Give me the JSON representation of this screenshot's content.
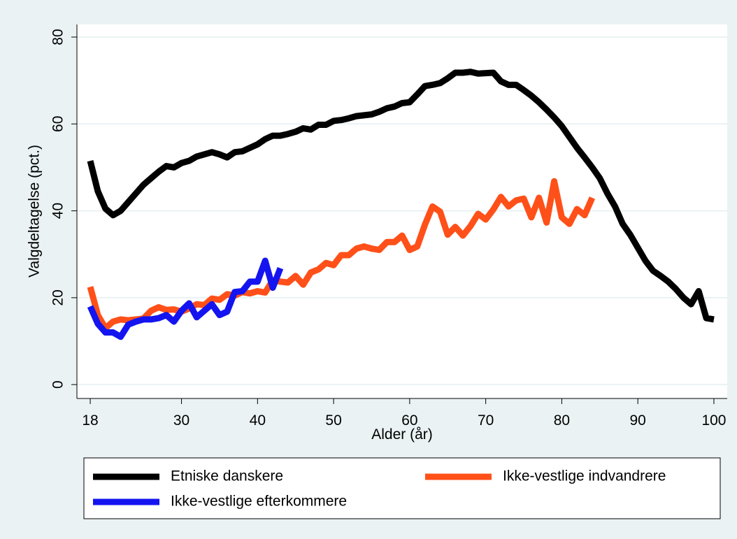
{
  "chart_data": {
    "type": "line",
    "x_label": "Alder (år)",
    "y_label": "Valgdeltagelse (pct.)",
    "xlim": [
      16.25,
      101.75
    ],
    "ylim": [
      -3.2,
      82.9
    ],
    "xticks": [
      18,
      30,
      40,
      50,
      60,
      70,
      80,
      90,
      100
    ],
    "yticks": [
      0,
      20,
      40,
      60,
      80
    ],
    "grid": true,
    "series": [
      {
        "name": "Etniske danskere",
        "color": "#000000",
        "x": [
          18,
          19,
          20,
          21,
          22,
          23,
          24,
          25,
          26,
          27,
          28,
          29,
          30,
          31,
          32,
          33,
          34,
          35,
          36,
          37,
          38,
          39,
          40,
          41,
          42,
          43,
          44,
          45,
          46,
          47,
          48,
          49,
          50,
          51,
          52,
          53,
          54,
          55,
          56,
          57,
          58,
          59,
          60,
          61,
          62,
          63,
          64,
          65,
          66,
          67,
          68,
          69,
          70,
          71,
          72,
          73,
          74,
          75,
          76,
          77,
          78,
          79,
          80,
          81,
          82,
          83,
          84,
          85,
          86,
          87,
          88,
          89,
          90,
          91,
          92,
          93,
          94,
          95,
          96,
          97,
          98,
          99,
          100
        ],
        "values": [
          51.5,
          44.5,
          40.5,
          39,
          40,
          42,
          44,
          46,
          47.5,
          49,
          50.3,
          50,
          51,
          51.5,
          52.5,
          53,
          53.5,
          53,
          52.3,
          53.5,
          53.7,
          54.5,
          55.3,
          56.5,
          57.3,
          57.3,
          57.7,
          58.2,
          59,
          58.7,
          59.8,
          59.8,
          60.7,
          60.9,
          61.3,
          61.8,
          62,
          62.2,
          62.8,
          63.6,
          64,
          64.8,
          65,
          66.8,
          68.7,
          69,
          69.4,
          70.5,
          71.8,
          71.8,
          72,
          71.6,
          71.7,
          71.8,
          69.8,
          69,
          69,
          67.8,
          66.5,
          65,
          63.3,
          61.5,
          59.5,
          57,
          54.5,
          52.3,
          50,
          47.5,
          44,
          41,
          37,
          34.5,
          31.5,
          28.5,
          26.2,
          25,
          23.7,
          22,
          20,
          18.5,
          21.5,
          15.3,
          15
        ]
      },
      {
        "name": "Ikke-vestlige indvandrere",
        "color": "#ff5019",
        "x": [
          18,
          19,
          20,
          21,
          22,
          23,
          24,
          25,
          26,
          27,
          28,
          29,
          30,
          31,
          32,
          33,
          34,
          35,
          36,
          37,
          38,
          39,
          40,
          41,
          42,
          43,
          44,
          45,
          46,
          47,
          48,
          49,
          50,
          51,
          52,
          53,
          54,
          55,
          56,
          57,
          58,
          59,
          60,
          61,
          62,
          63,
          64,
          65,
          66,
          67,
          68,
          69,
          70,
          71,
          72,
          73,
          74,
          75,
          76,
          77,
          78,
          79,
          80,
          81,
          82,
          83,
          84
        ],
        "values": [
          22.5,
          16,
          13,
          14.5,
          15,
          14.8,
          15,
          15.2,
          17,
          17.8,
          17.2,
          17.3,
          16.8,
          17.5,
          18.5,
          18.3,
          19.8,
          19.5,
          20.8,
          20.5,
          21.3,
          21,
          21.5,
          21.2,
          24,
          23.7,
          23.5,
          25,
          23,
          25.8,
          26.5,
          28,
          27.5,
          29.8,
          29.8,
          31.3,
          31.8,
          31.3,
          31,
          32.8,
          32.8,
          34.3,
          31,
          31.8,
          36.8,
          41,
          39.8,
          34.5,
          36.3,
          34.3,
          36.5,
          39.3,
          38,
          40.3,
          43.2,
          41,
          42.4,
          42.8,
          38.5,
          43,
          37.3,
          46.8,
          38.5,
          37,
          40.4,
          39,
          43
        ]
      },
      {
        "name": "Ikke-vestlige efterkommere",
        "color": "#1414f0",
        "x": [
          18,
          19,
          20,
          21,
          22,
          23,
          24,
          25,
          26,
          27,
          28,
          29,
          30,
          31,
          32,
          33,
          34,
          35,
          36,
          37,
          38,
          39,
          40,
          41,
          42,
          43
        ],
        "values": [
          18,
          14,
          12,
          12,
          11,
          13.8,
          14.5,
          15,
          15,
          15.3,
          16,
          14.5,
          17,
          18.7,
          15.5,
          17,
          18.5,
          16,
          16.8,
          21.3,
          21.5,
          23.7,
          23.7,
          28.5,
          22.3,
          26.8
        ]
      }
    ]
  }
}
